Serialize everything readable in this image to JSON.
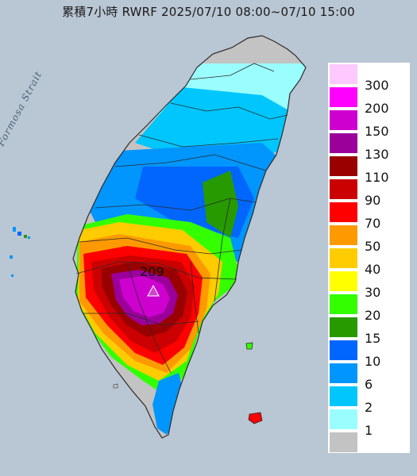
{
  "title": "累積7小時 RWRF 2025/07/10 08:00~07/10 15:00",
  "strait_label": "Formosa Strait",
  "peak": {
    "value": "209",
    "marker_color": "#cc44cc"
  },
  "colors": {
    "sea": "#b9c6d3",
    "no_rain": "#c3c3c3",
    "outline": "#2b2b2b"
  },
  "legend": [
    {
      "label": "300",
      "color": "#fdc9fe"
    },
    {
      "label": "200",
      "color": "#fd00fe"
    },
    {
      "label": "150",
      "color": "#ce00cf"
    },
    {
      "label": "130",
      "color": "#9b009b"
    },
    {
      "label": "110",
      "color": "#990000"
    },
    {
      "label": "90",
      "color": "#cb0000"
    },
    {
      "label": "70",
      "color": "#fe0000"
    },
    {
      "label": "50",
      "color": "#fe9a00"
    },
    {
      "label": "40",
      "color": "#fecc00"
    },
    {
      "label": "30",
      "color": "#ffff00"
    },
    {
      "label": "20",
      "color": "#33ff00"
    },
    {
      "label": "15",
      "color": "#279a00"
    },
    {
      "label": "10",
      "color": "#0066fe"
    },
    {
      "label": "6",
      "color": "#0096fe"
    },
    {
      "label": "2",
      "color": "#00c6fe"
    },
    {
      "label": "1",
      "color": "#9afefe"
    },
    {
      "label": "",
      "color": "#c3c3c3"
    }
  ]
}
